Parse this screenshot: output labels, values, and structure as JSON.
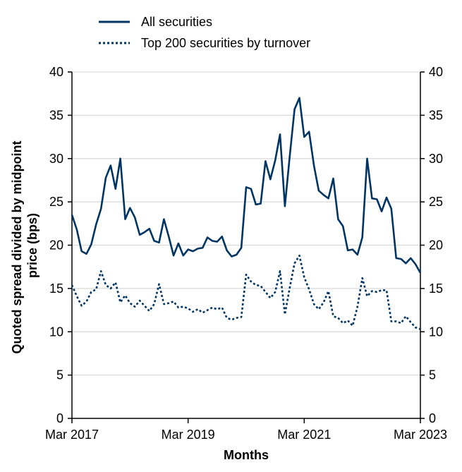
{
  "chart_data": {
    "type": "line",
    "title": "",
    "xlabel": "Months",
    "ylabel": "Quoted spread divided by midpoint price (bps)",
    "ylim": [
      0,
      40
    ],
    "yticks": [
      0,
      5,
      10,
      15,
      20,
      25,
      30,
      35,
      40
    ],
    "xlim": [
      "2017-03",
      "2023-03"
    ],
    "xticks": [
      "Mar 2017",
      "Mar 2019",
      "Mar 2021",
      "Mar 2023"
    ],
    "grid": "horizontal",
    "legend_position": "top-left",
    "colors": {
      "series": "#003462",
      "grid": "#d9d9d9",
      "axis": "#000000"
    },
    "x": [
      "2017-03",
      "2017-04",
      "2017-05",
      "2017-06",
      "2017-07",
      "2017-08",
      "2017-09",
      "2017-10",
      "2017-11",
      "2017-12",
      "2018-01",
      "2018-02",
      "2018-03",
      "2018-04",
      "2018-05",
      "2018-06",
      "2018-07",
      "2018-08",
      "2018-09",
      "2018-10",
      "2018-11",
      "2018-12",
      "2019-01",
      "2019-02",
      "2019-03",
      "2019-04",
      "2019-05",
      "2019-06",
      "2019-07",
      "2019-08",
      "2019-09",
      "2019-10",
      "2019-11",
      "2019-12",
      "2020-01",
      "2020-02",
      "2020-03",
      "2020-04",
      "2020-05",
      "2020-06",
      "2020-07",
      "2020-08",
      "2020-09",
      "2020-10",
      "2020-11",
      "2020-12",
      "2021-01",
      "2021-02",
      "2021-03",
      "2021-04",
      "2021-05",
      "2021-06",
      "2021-07",
      "2021-08",
      "2021-09",
      "2021-10",
      "2021-11",
      "2021-12",
      "2022-01",
      "2022-02",
      "2022-03",
      "2022-04",
      "2022-05",
      "2022-06",
      "2022-07",
      "2022-08",
      "2022-09",
      "2022-10",
      "2022-11",
      "2022-12",
      "2023-01",
      "2023-02",
      "2023-03"
    ],
    "series": [
      {
        "name": "All securities",
        "style": "solid",
        "values": [
          23.5,
          21.8,
          19.3,
          19.0,
          20.1,
          22.4,
          24.2,
          27.8,
          29.2,
          26.5,
          30.0,
          23.0,
          24.3,
          23.2,
          21.2,
          21.5,
          21.9,
          20.5,
          20.3,
          23.0,
          21.0,
          18.8,
          20.2,
          18.8,
          19.5,
          19.3,
          19.6,
          19.7,
          20.9,
          20.5,
          20.4,
          21.0,
          19.4,
          18.7,
          18.9,
          19.7,
          26.7,
          26.5,
          24.7,
          24.8,
          29.7,
          27.6,
          29.8,
          32.8,
          24.5,
          30.3,
          35.7,
          37.0,
          32.5,
          33.1,
          29.2,
          26.3,
          25.8,
          25.4,
          27.7,
          23.0,
          22.2,
          19.4,
          19.5,
          18.9,
          20.9,
          30.0,
          25.4,
          25.3,
          23.9,
          25.5,
          24.2,
          18.5,
          18.4,
          17.9,
          18.5,
          17.8,
          16.8
        ]
      },
      {
        "name": "Top 200 securities by turnover",
        "style": "dotted",
        "values": [
          15.4,
          14.1,
          13.0,
          13.5,
          14.6,
          14.9,
          17.0,
          15.4,
          15.0,
          15.7,
          13.4,
          14.2,
          13.3,
          12.9,
          13.6,
          13.0,
          12.4,
          13.2,
          15.5,
          13.2,
          13.3,
          13.5,
          12.8,
          12.9,
          12.7,
          12.3,
          12.6,
          12.2,
          12.5,
          12.8,
          12.6,
          12.8,
          11.6,
          11.4,
          11.6,
          11.7,
          16.6,
          15.8,
          15.4,
          15.3,
          14.6,
          13.9,
          14.6,
          17.0,
          12.0,
          15.1,
          17.9,
          18.8,
          16.3,
          14.9,
          13.2,
          12.6,
          13.4,
          14.7,
          11.8,
          11.6,
          11.0,
          11.3,
          10.7,
          12.9,
          16.2,
          14.1,
          14.7,
          14.6,
          14.8,
          14.8,
          11.2,
          11.2,
          11.0,
          11.8,
          11.1,
          10.5,
          10.3
        ]
      }
    ]
  }
}
